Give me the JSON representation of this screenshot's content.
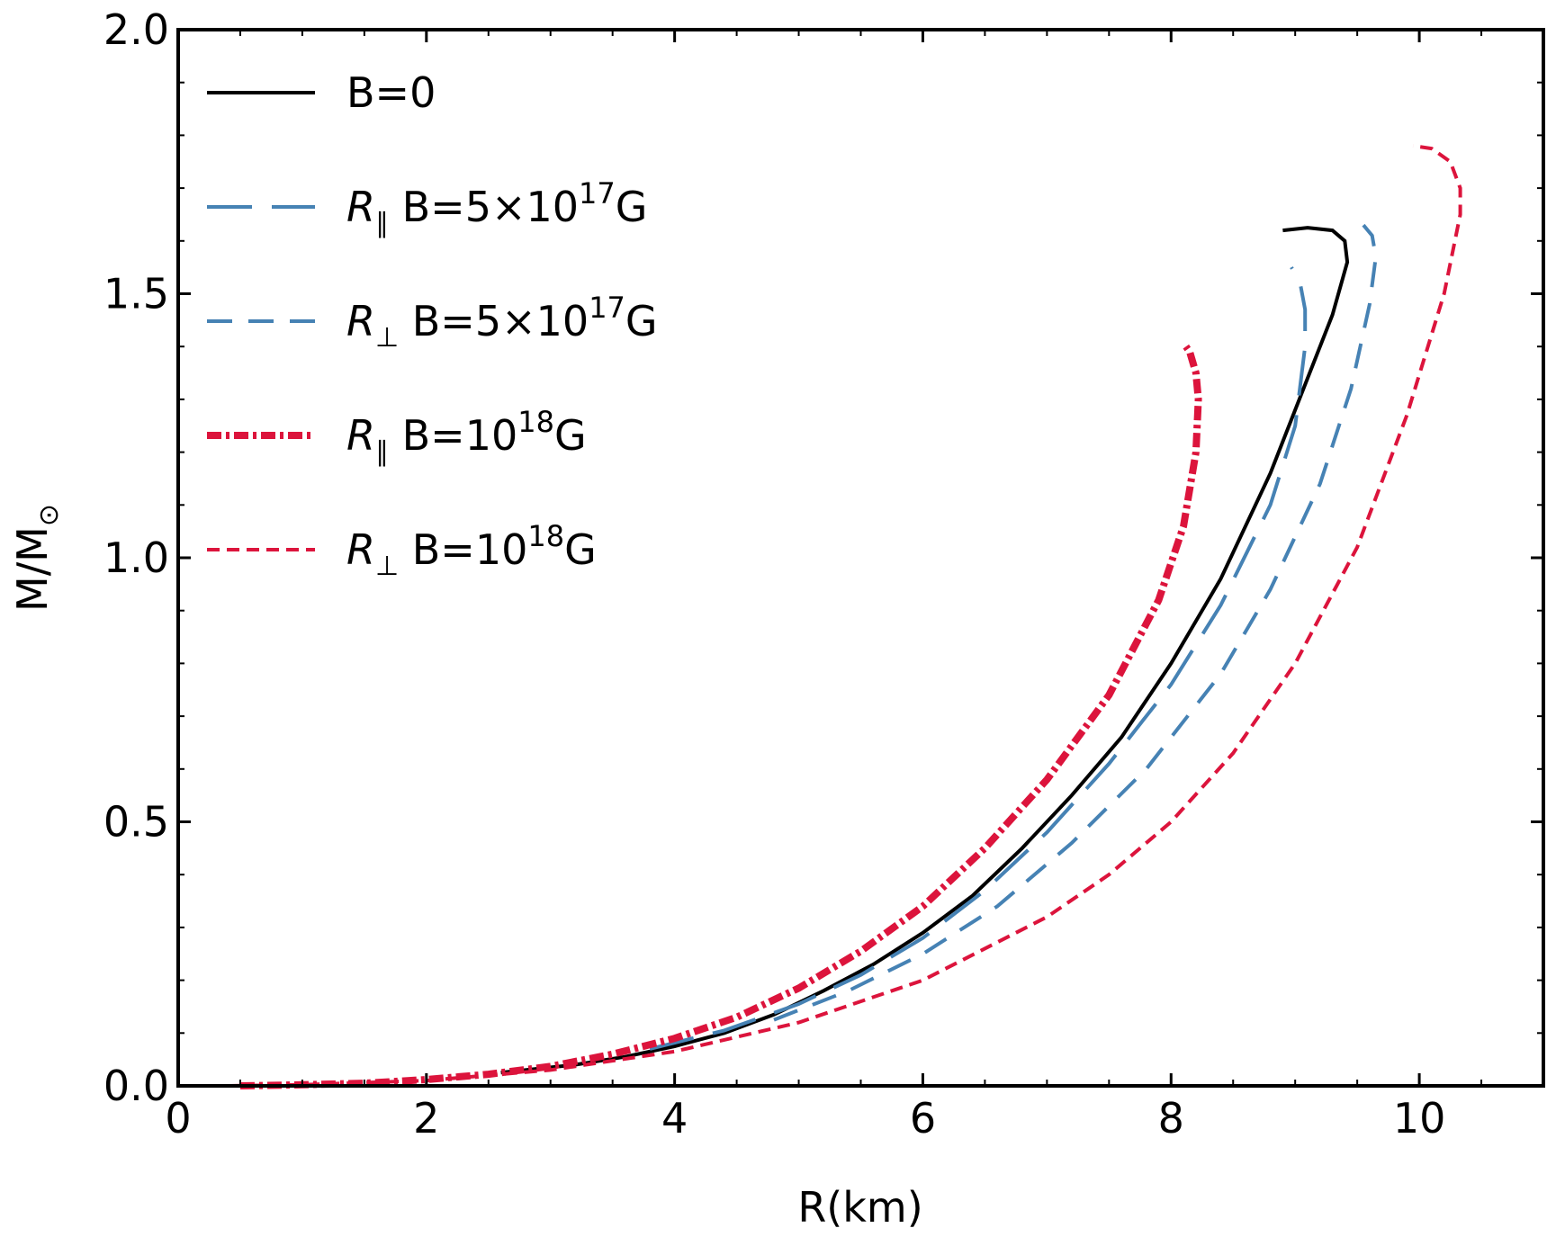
{
  "chart_data": {
    "type": "line",
    "title": "",
    "xlabel": "R(km)",
    "ylabel": "M/M",
    "ylabel_sub": "⊙",
    "xlim": [
      0,
      11
    ],
    "ylim": [
      0,
      2
    ],
    "grid": false,
    "legend_position": "top-left",
    "x_ticks": [
      0,
      2,
      4,
      6,
      8,
      10
    ],
    "x_tick_labels": [
      "0",
      "2",
      "4",
      "6",
      "8",
      "10"
    ],
    "y_ticks": [
      0,
      0.5,
      1,
      1.5,
      2
    ],
    "y_tick_labels": [
      "0.0",
      "0.5",
      "1.0",
      "1.5",
      "2.0"
    ],
    "series": [
      {
        "legend": {
          "main": "B=0"
        },
        "color": "#000000",
        "dash": "",
        "width": 4,
        "points": [
          [
            2.6,
            0.025
          ],
          [
            3.2,
            0.04
          ],
          [
            3.6,
            0.055
          ],
          [
            4.0,
            0.075
          ],
          [
            4.4,
            0.1
          ],
          [
            4.8,
            0.135
          ],
          [
            5.2,
            0.18
          ],
          [
            5.6,
            0.23
          ],
          [
            6.0,
            0.29
          ],
          [
            6.4,
            0.36
          ],
          [
            6.8,
            0.45
          ],
          [
            7.2,
            0.55
          ],
          [
            7.6,
            0.66
          ],
          [
            8.0,
            0.8
          ],
          [
            8.4,
            0.96
          ],
          [
            8.8,
            1.16
          ],
          [
            9.1,
            1.34
          ],
          [
            9.3,
            1.46
          ],
          [
            9.42,
            1.56
          ],
          [
            9.4,
            1.6
          ],
          [
            9.3,
            1.62
          ],
          [
            9.1,
            1.625
          ],
          [
            8.9,
            1.62
          ]
        ]
      },
      {
        "legend": {
          "italic": "R",
          "sub": "∥",
          "main": " B=5×10",
          "sup": "17",
          "suffix": "G"
        },
        "color": "#4682b4",
        "dash": "50 22",
        "width": 4,
        "points": [
          [
            3.8,
            0.07
          ],
          [
            4.4,
            0.105
          ],
          [
            5.0,
            0.155
          ],
          [
            5.5,
            0.21
          ],
          [
            6.0,
            0.28
          ],
          [
            6.5,
            0.37
          ],
          [
            7.0,
            0.48
          ],
          [
            7.5,
            0.61
          ],
          [
            8.0,
            0.76
          ],
          [
            8.4,
            0.91
          ],
          [
            8.8,
            1.1
          ],
          [
            9.0,
            1.25
          ],
          [
            9.08,
            1.4
          ],
          [
            9.08,
            1.47
          ],
          [
            9.04,
            1.52
          ],
          [
            8.97,
            1.55
          ]
        ]
      },
      {
        "legend": {
          "italic": "R",
          "sub": "⊥",
          "main": " B=5×10",
          "sup": "17",
          "suffix": "G"
        },
        "color": "#4682b4",
        "dash": "28 18",
        "width": 4,
        "points": [
          [
            4.8,
            0.125
          ],
          [
            5.4,
            0.18
          ],
          [
            6.0,
            0.25
          ],
          [
            6.6,
            0.34
          ],
          [
            7.2,
            0.46
          ],
          [
            7.8,
            0.6
          ],
          [
            8.4,
            0.78
          ],
          [
            8.8,
            0.94
          ],
          [
            9.2,
            1.14
          ],
          [
            9.45,
            1.32
          ],
          [
            9.6,
            1.48
          ],
          [
            9.65,
            1.57
          ],
          [
            9.62,
            1.61
          ],
          [
            9.55,
            1.63
          ]
        ]
      },
      {
        "legend": {
          "italic": "R",
          "sub": "∥",
          "main": " B=10",
          "sup": "18",
          "suffix": "G"
        },
        "color": "#dc143c",
        "dash": "16 5 4 5",
        "width": 8,
        "points": [
          [
            0.5,
            0.0
          ],
          [
            1.0,
            0.002
          ],
          [
            1.5,
            0.005
          ],
          [
            2.0,
            0.012
          ],
          [
            2.5,
            0.022
          ],
          [
            3.0,
            0.037
          ],
          [
            3.5,
            0.06
          ],
          [
            4.0,
            0.09
          ],
          [
            4.5,
            0.13
          ],
          [
            5.0,
            0.185
          ],
          [
            5.5,
            0.255
          ],
          [
            6.0,
            0.34
          ],
          [
            6.5,
            0.45
          ],
          [
            7.0,
            0.58
          ],
          [
            7.5,
            0.74
          ],
          [
            7.9,
            0.92
          ],
          [
            8.1,
            1.06
          ],
          [
            8.2,
            1.2
          ],
          [
            8.22,
            1.3
          ],
          [
            8.2,
            1.35
          ],
          [
            8.15,
            1.39
          ],
          [
            8.12,
            1.4
          ]
        ]
      },
      {
        "legend": {
          "italic": "R",
          "sub": "⊥",
          "main": " B=10",
          "sup": "18",
          "suffix": "G"
        },
        "color": "#dc143c",
        "dash": "14 8",
        "width": 4,
        "points": [
          [
            0.4,
            0.0
          ],
          [
            1.0,
            0.002
          ],
          [
            2.0,
            0.01
          ],
          [
            3.0,
            0.03
          ],
          [
            4.0,
            0.065
          ],
          [
            5.0,
            0.12
          ],
          [
            6.0,
            0.2
          ],
          [
            7.0,
            0.32
          ],
          [
            7.5,
            0.4
          ],
          [
            8.0,
            0.5
          ],
          [
            8.5,
            0.63
          ],
          [
            9.0,
            0.8
          ],
          [
            9.5,
            1.02
          ],
          [
            9.9,
            1.27
          ],
          [
            10.2,
            1.5
          ],
          [
            10.33,
            1.65
          ],
          [
            10.33,
            1.7
          ],
          [
            10.25,
            1.75
          ],
          [
            10.1,
            1.775
          ],
          [
            9.95,
            1.78
          ]
        ]
      }
    ]
  }
}
